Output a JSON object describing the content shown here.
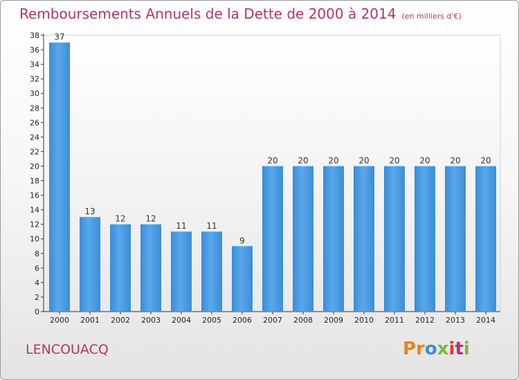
{
  "title": "Remboursements Annuels de la Dette de 2000 à 2014",
  "unit": "(en milliers d'€)",
  "place": "LENCOUACQ",
  "logo": {
    "letters": [
      "P",
      "r",
      "o",
      "x",
      "i",
      "t",
      "i"
    ],
    "colors": [
      "#e8851d",
      "#e8851d",
      "#3f8fd4",
      "#7ab83a",
      "#e23b2e",
      "#b5336b",
      "#7ab83a"
    ]
  },
  "colors": {
    "bar": "#3a8dd8",
    "bar_light": "#5aa8ea",
    "axis": "#333333",
    "grid": "#dcdcdc",
    "title": "#b5336b"
  },
  "chart_data": {
    "type": "bar",
    "categories": [
      "2000",
      "2001",
      "2002",
      "2003",
      "2004",
      "2005",
      "2006",
      "2007",
      "2008",
      "2009",
      "2010",
      "2011",
      "2012",
      "2013",
      "2014"
    ],
    "values": [
      37,
      13,
      12,
      12,
      11,
      11,
      9,
      20,
      20,
      20,
      20,
      20,
      20,
      20,
      20
    ],
    "ylim": [
      0,
      38
    ],
    "yticks": [
      0,
      2,
      4,
      6,
      8,
      10,
      12,
      14,
      16,
      18,
      20,
      22,
      24,
      26,
      28,
      30,
      32,
      34,
      36,
      38
    ],
    "title": "Remboursements Annuels de la Dette de 2000 à 2014",
    "xlabel": "",
    "ylabel": "",
    "grid": false,
    "data_labels": true
  }
}
